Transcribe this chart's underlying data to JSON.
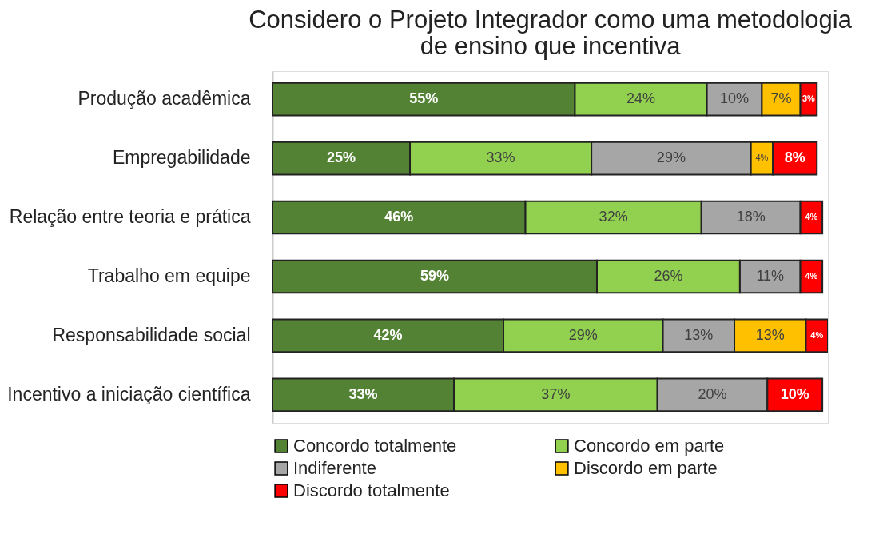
{
  "chart_data": {
    "type": "bar",
    "orientation": "horizontal",
    "stacked": true,
    "title": "Considero o Projeto Integrador como uma metodologia de ensino que incentiva",
    "categories": [
      "Produção acadêmica",
      "Empregabilidade",
      "Relação entre teoria e prática",
      "Trabalho em equipe",
      "Responsabilidade social",
      "Incentivo a iniciação científica"
    ],
    "xlim": [
      0,
      101
    ],
    "tick_labels": "y",
    "legend": "bottom",
    "grid": false,
    "series": [
      {
        "name": "Concordo totalmente",
        "color": "#548235",
        "values": [
          55,
          25,
          46,
          59,
          42,
          33
        ],
        "value_labels": [
          "55%",
          "25%",
          "46%",
          "59%",
          "42%",
          "33%"
        ]
      },
      {
        "name": "Concordo em parte",
        "color": "#92d050",
        "values": [
          24,
          33,
          32,
          26,
          29,
          37
        ],
        "value_labels": [
          "24%",
          "33%",
          "32%",
          "26%",
          "29%",
          "37%"
        ]
      },
      {
        "name": "Indiferente",
        "color": "#a6a6a6",
        "values": [
          10,
          29,
          18,
          11,
          13,
          20
        ],
        "value_labels": [
          "10%",
          "29%",
          "18%",
          "11%",
          "13%",
          "20%"
        ]
      },
      {
        "name": "Discordo em parte",
        "color": "#ffc000",
        "values": [
          7,
          4,
          null,
          null,
          13,
          null
        ],
        "value_labels": [
          "7%",
          "4%",
          null,
          null,
          "13%",
          null
        ]
      },
      {
        "name": "Discordo totalmente",
        "color": "#ff0000",
        "values": [
          3,
          8,
          4,
          4,
          4,
          10
        ],
        "value_labels": [
          "3%",
          "8%",
          "4%",
          "4%",
          "4%",
          "10%"
        ]
      }
    ]
  }
}
